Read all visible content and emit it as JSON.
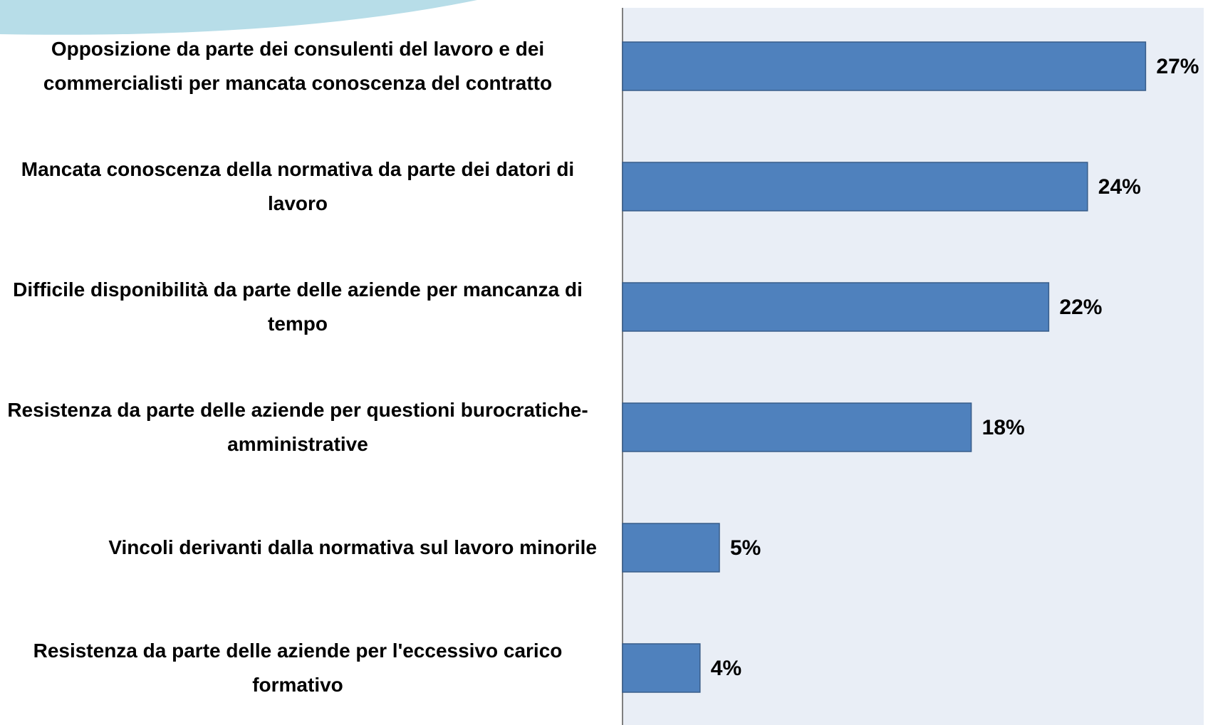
{
  "chart_data": {
    "type": "bar",
    "orientation": "horizontal",
    "categories": [
      "Opposizione da parte dei consulenti del lavoro e dei commercialisti per mancata conoscenza del contratto",
      "Mancata conoscenza della normativa da parte dei datori di lavoro",
      "Difficile disponibilità da parte delle aziende per mancanza di tempo",
      "Resistenza da parte delle aziende per questioni burocratiche-amministrative",
      "Vincoli derivanti dalla normativa sul lavoro minorile",
      "Resistenza da parte delle aziende per l'eccessivo carico formativo"
    ],
    "values": [
      27,
      24,
      22,
      18,
      5,
      4
    ],
    "value_labels": [
      "27%",
      "24%",
      "22%",
      "18%",
      "5%",
      "4%"
    ],
    "color": "#4f81bd",
    "xlim": [
      0,
      30
    ]
  }
}
